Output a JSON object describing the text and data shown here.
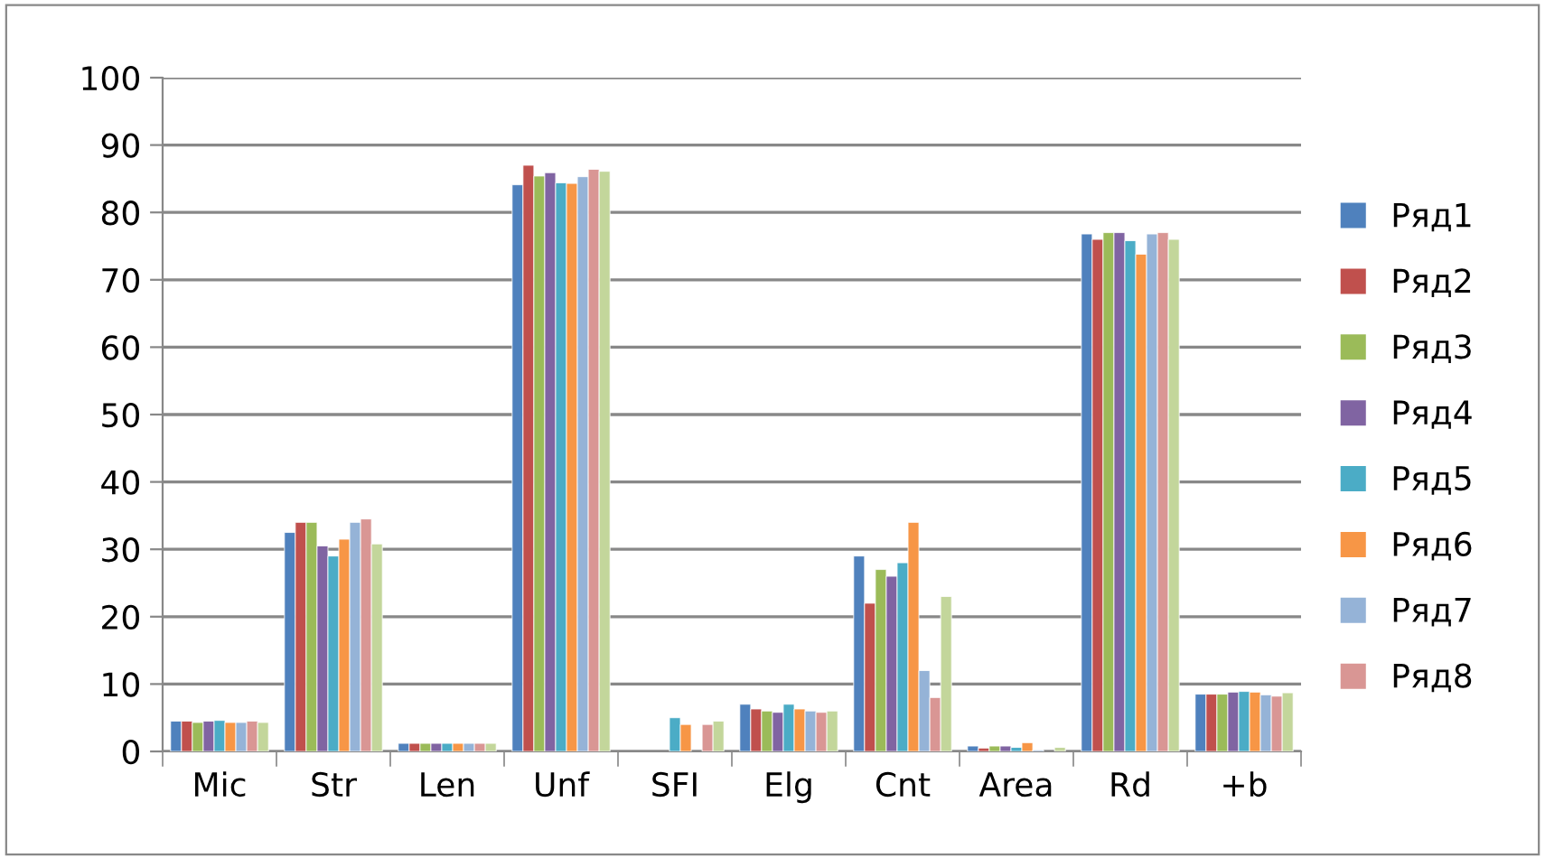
{
  "chart_data": {
    "type": "bar",
    "categories": [
      "Mic",
      "Str",
      "Len",
      "Unf",
      "SFI",
      "Elg",
      "Cnt",
      "Area",
      "Rd",
      "+b"
    ],
    "ylim": [
      0,
      100
    ],
    "yticks": [
      0,
      10,
      20,
      30,
      40,
      50,
      60,
      70,
      80,
      90,
      100
    ],
    "grid": "y",
    "legend": "right",
    "series": [
      {
        "name": "Ряд1",
        "color": "#4f81bd",
        "values": [
          4.5,
          32.5,
          1.2,
          84.1,
          null,
          7,
          29,
          0.8,
          76.8,
          8.5
        ]
      },
      {
        "name": "Ряд2",
        "color": "#c0504d",
        "values": [
          4.5,
          34,
          1.2,
          87,
          null,
          6.3,
          22,
          0.5,
          76,
          8.5
        ]
      },
      {
        "name": "Ряд3",
        "color": "#9bbb59",
        "values": [
          4.3,
          34,
          1.2,
          85.4,
          null,
          6,
          27,
          0.8,
          77,
          8.5
        ]
      },
      {
        "name": "Ряд4",
        "color": "#8064a2",
        "values": [
          4.5,
          30.5,
          1.2,
          85.9,
          null,
          5.8,
          26,
          0.8,
          77,
          8.8
        ]
      },
      {
        "name": "Ряд5",
        "color": "#4bacc6",
        "values": [
          4.6,
          29,
          1.2,
          84.4,
          5,
          7,
          28,
          0.6,
          75.8,
          8.9
        ]
      },
      {
        "name": "Ряд6",
        "color": "#f79646",
        "values": [
          4.3,
          31.5,
          1.2,
          84.3,
          4,
          6.3,
          34,
          1.3,
          73.8,
          8.8
        ]
      },
      {
        "name": "Ряд7",
        "color": "#95b3d7",
        "values": [
          4.3,
          34,
          1.2,
          85.3,
          null,
          6,
          12,
          0.2,
          76.8,
          8.4
        ]
      },
      {
        "name": "Ряд8",
        "color": "#d99694",
        "values": [
          4.5,
          34.5,
          1.2,
          86.4,
          4,
          5.8,
          8,
          null,
          77,
          8.2
        ]
      },
      {
        "color": "#c3d69b",
        "values": [
          4.3,
          30.8,
          1.2,
          86.1,
          4.5,
          6,
          23,
          0.6,
          76,
          8.7
        ]
      }
    ]
  }
}
